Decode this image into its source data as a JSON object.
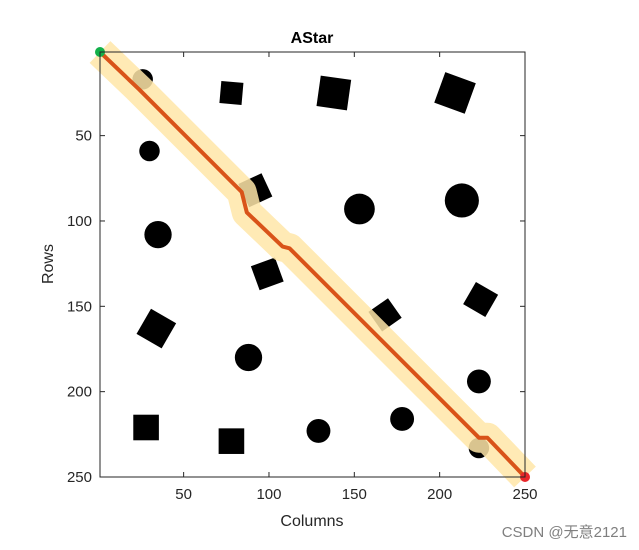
{
  "chart_data": {
    "type": "scatter",
    "title": "AStar",
    "xlabel": "Columns",
    "ylabel": "Rows",
    "xlim": [
      1,
      250
    ],
    "ylim": [
      1,
      250
    ],
    "y_reversed": true,
    "xticks": [
      50,
      100,
      150,
      200,
      250
    ],
    "yticks": [
      50,
      100,
      150,
      200,
      250
    ],
    "grid": false,
    "legend": "none",
    "start": {
      "x": 1,
      "y": 1,
      "color": "#12b04a"
    },
    "goal": {
      "x": 250,
      "y": 250,
      "color": "#e8262b"
    },
    "path": {
      "color": "#d95319",
      "corridor_color": "#ffe6a8",
      "points": [
        [
          1,
          1
        ],
        [
          24,
          23
        ],
        [
          84,
          83
        ],
        [
          87,
          95
        ],
        [
          108,
          115
        ],
        [
          112,
          116
        ],
        [
          223,
          227
        ],
        [
          228,
          227
        ],
        [
          250,
          250
        ]
      ]
    },
    "obstacles": [
      {
        "shape": "circle",
        "x": 26,
        "y": 17,
        "r": 6
      },
      {
        "shape": "square",
        "x": 78,
        "y": 25,
        "size": 13,
        "angle": 5
      },
      {
        "shape": "square",
        "x": 138,
        "y": 25,
        "size": 18,
        "angle": 8
      },
      {
        "shape": "square",
        "x": 209,
        "y": 25,
        "size": 19,
        "angle": 20
      },
      {
        "shape": "circle",
        "x": 30,
        "y": 59,
        "r": 6
      },
      {
        "shape": "square",
        "x": 92,
        "y": 82,
        "size": 15,
        "angle": -25
      },
      {
        "shape": "circle",
        "x": 153,
        "y": 93,
        "r": 9
      },
      {
        "shape": "circle",
        "x": 213,
        "y": 88,
        "r": 10
      },
      {
        "shape": "circle",
        "x": 35,
        "y": 108,
        "r": 8
      },
      {
        "shape": "square",
        "x": 99,
        "y": 131,
        "size": 15,
        "angle": -20
      },
      {
        "shape": "square",
        "x": 168,
        "y": 155,
        "size": 14,
        "angle": -35
      },
      {
        "shape": "square",
        "x": 224,
        "y": 146,
        "size": 15,
        "angle": 30
      },
      {
        "shape": "square",
        "x": 34,
        "y": 163,
        "size": 17,
        "angle": 30
      },
      {
        "shape": "circle",
        "x": 88,
        "y": 180,
        "r": 8
      },
      {
        "shape": "circle",
        "x": 223,
        "y": 194,
        "r": 7
      },
      {
        "shape": "square",
        "x": 28,
        "y": 221,
        "size": 15,
        "angle": 0
      },
      {
        "shape": "square",
        "x": 78,
        "y": 229,
        "size": 15,
        "angle": 0
      },
      {
        "shape": "circle",
        "x": 129,
        "y": 223,
        "r": 7
      },
      {
        "shape": "circle",
        "x": 178,
        "y": 216,
        "r": 7
      },
      {
        "shape": "circle",
        "x": 223,
        "y": 233,
        "r": 6
      }
    ]
  },
  "watermark": "CSDN @无意2121"
}
